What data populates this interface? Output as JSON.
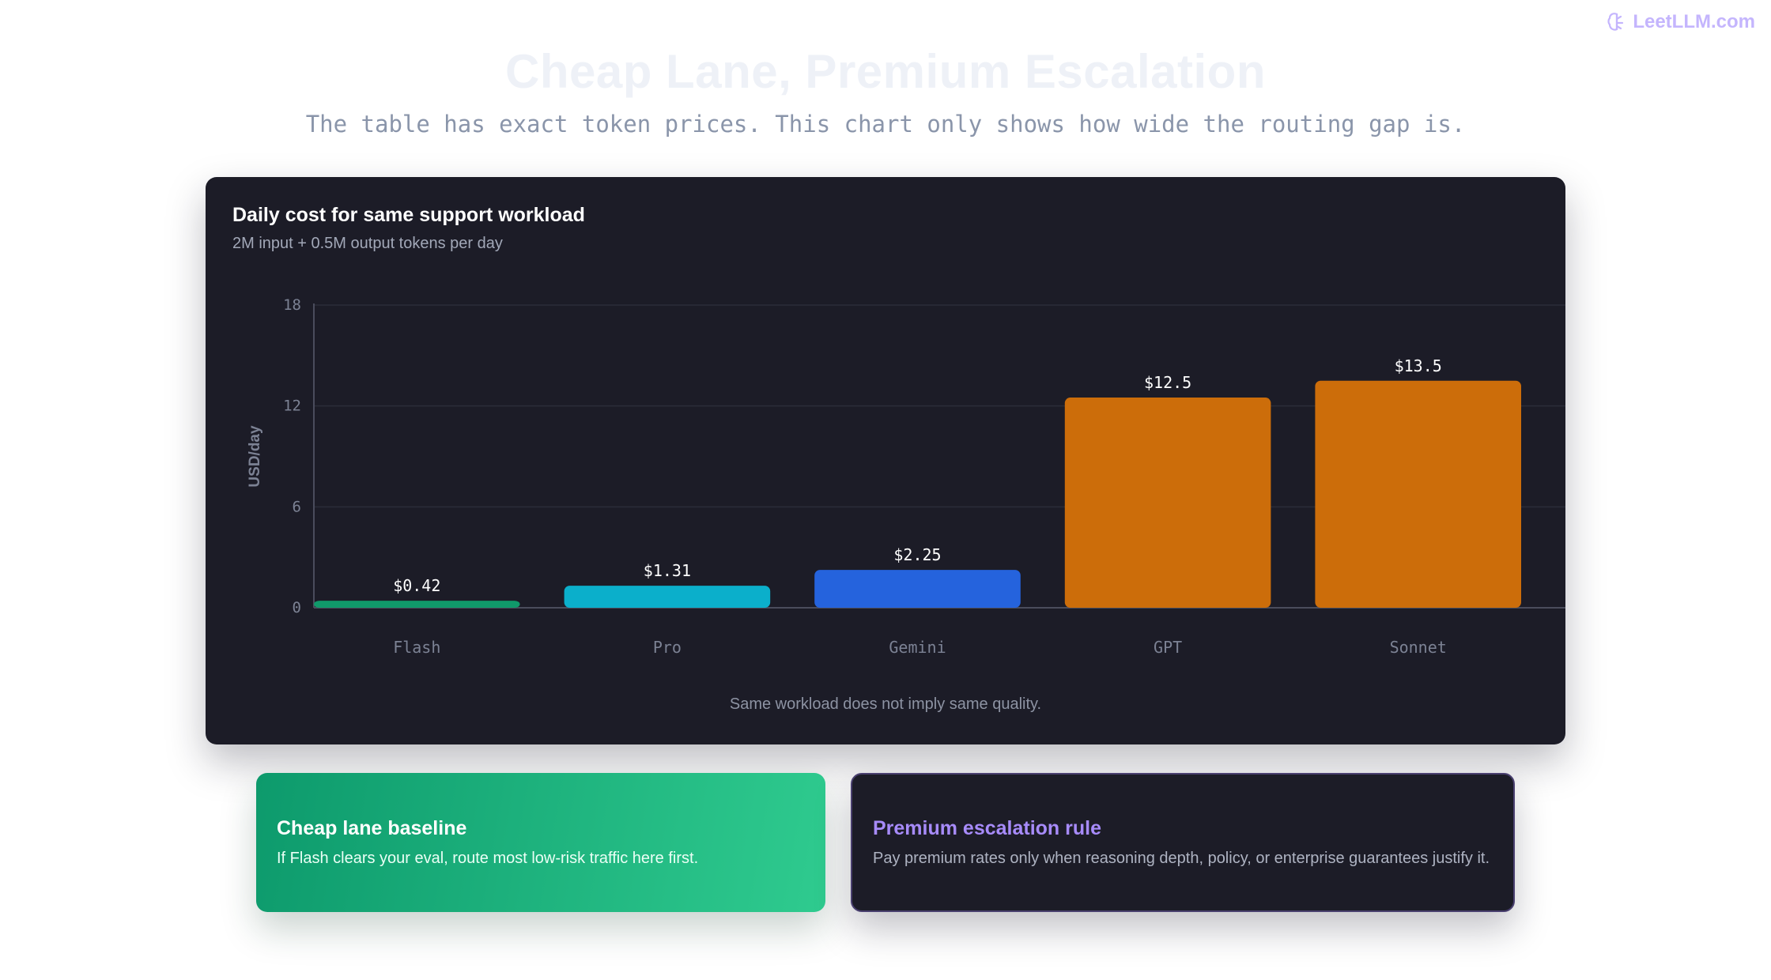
{
  "brand": {
    "name": "LeetLLM.com",
    "icon": "brain-icon"
  },
  "header": {
    "title": "Cheap Lane, Premium Escalation",
    "subtitle": "The table has exact token prices. This chart only shows how wide the routing gap is."
  },
  "chart_card": {
    "title": "Daily cost for same support workload",
    "subtitle": "2M input + 0.5M output tokens per day",
    "caption": "Same workload does not imply same quality."
  },
  "chart_data": {
    "type": "bar",
    "categories": [
      "Flash",
      "Pro",
      "Gemini",
      "GPT",
      "Sonnet"
    ],
    "values": [
      0.42,
      1.31,
      2.25,
      12.5,
      13.5
    ],
    "value_labels": [
      "$0.42",
      "$1.31",
      "$2.25",
      "$12.5",
      "$13.5"
    ],
    "colors": [
      "#10996a",
      "#0bafcb",
      "#2563dd",
      "#cc6d0a",
      "#cc6d0a"
    ],
    "ylabel": "USD/day",
    "ylim": [
      0,
      18
    ],
    "yticks": [
      0,
      6,
      12,
      18
    ],
    "grid": true
  },
  "panels": {
    "cheap": {
      "title": "Cheap lane baseline",
      "text": "If Flash clears your eval, route most low-risk traffic here first."
    },
    "premium": {
      "title": "Premium escalation rule",
      "text": "Pay premium rates only when reasoning depth, policy, or enterprise guarantees justify it."
    }
  }
}
